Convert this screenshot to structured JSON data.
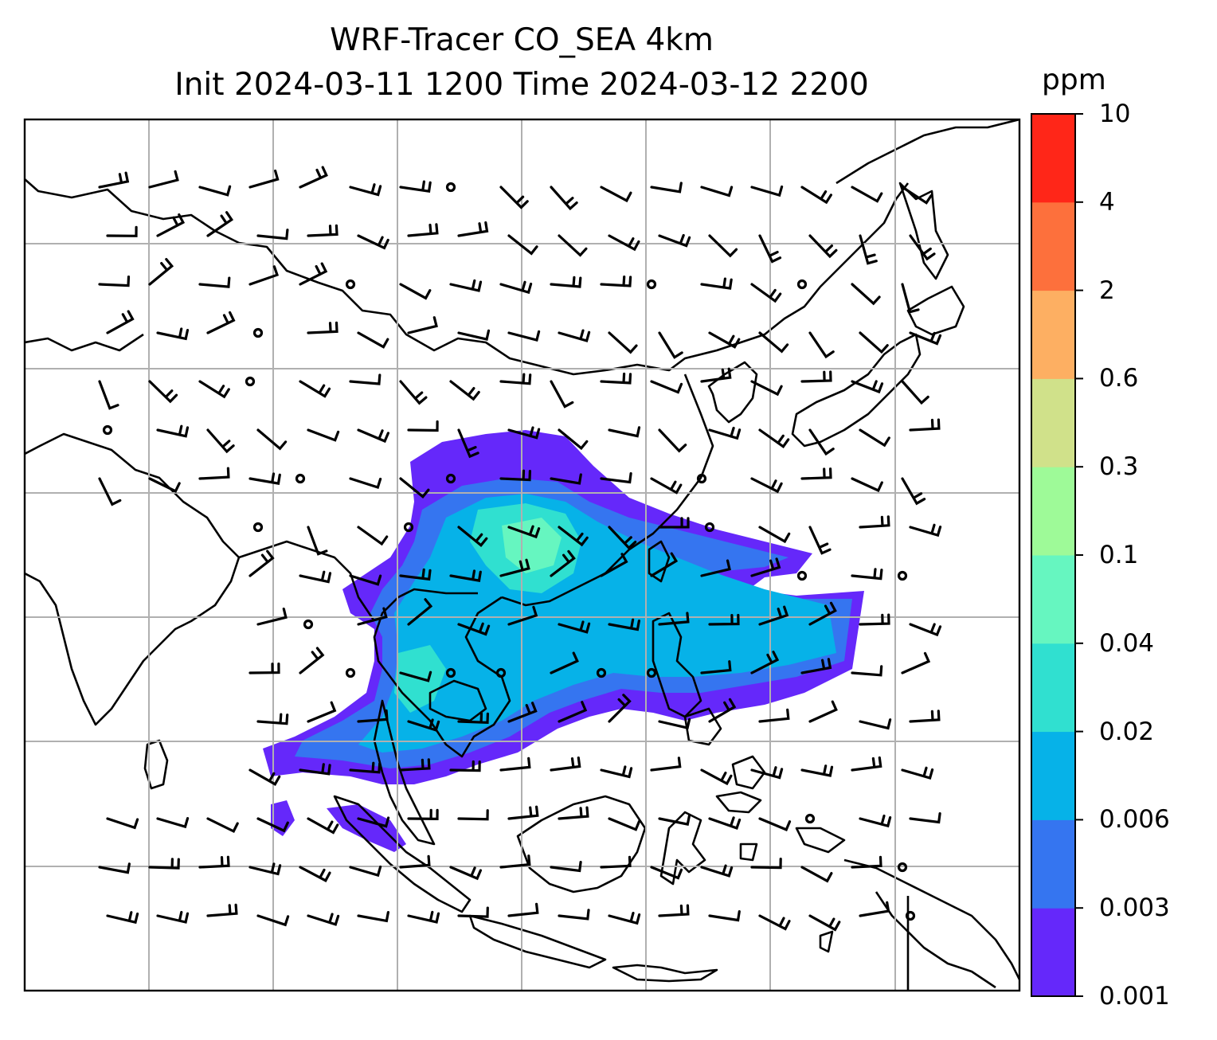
{
  "figure": {
    "title_line1": "WRF-Tracer CO_SEA 4km",
    "title_line2": "Init 2024-03-11 1200 Time 2024-03-12 2200"
  },
  "colorbar": {
    "unit": "ppm",
    "levels": [
      "0.001",
      "0.003",
      "0.006",
      "0.02",
      "0.04",
      "0.1",
      "0.3",
      "0.6",
      "2",
      "4",
      "10"
    ],
    "colors": [
      "#6528fa",
      "#3575f0",
      "#06b2e8",
      "#30e0d0",
      "#66f6c0",
      "#9efa98",
      "#d0e18a",
      "#fdaf62",
      "#fd703c",
      "#ff2618"
    ]
  },
  "map": {
    "gridlines": true,
    "coastlines": true,
    "overlay": "wind-barbs",
    "contour_fill_colors": {
      "outer": "#6528fa",
      "mid": "#3575f0",
      "inner": "#06b2e8",
      "core": "#30e0d0",
      "peak": "#66f6c0"
    }
  }
}
